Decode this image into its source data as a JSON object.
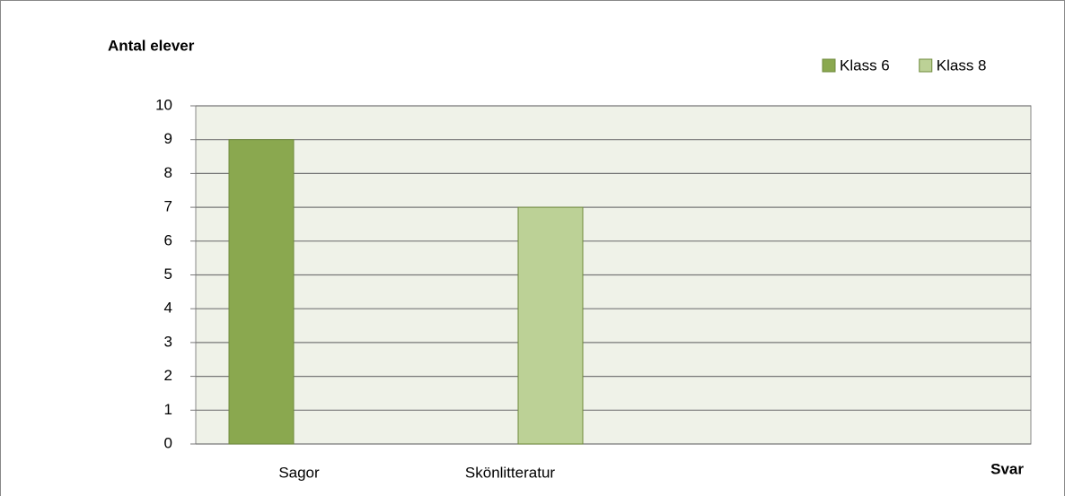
{
  "chart_data": {
    "type": "bar",
    "y_label": "Antal elever",
    "x_label": "Svar",
    "categories": [
      "Sagor",
      "Skönlitteratur"
    ],
    "series": [
      {
        "name": "Klass 6",
        "color": "#8aa84f",
        "values": [
          9,
          null
        ]
      },
      {
        "name": "Klass 8",
        "color": "#bcd196",
        "values": [
          null,
          7
        ]
      }
    ],
    "ylim": [
      0,
      10
    ],
    "yticks": [
      0,
      1,
      2,
      3,
      4,
      5,
      6,
      7,
      8,
      9,
      10
    ],
    "grid": true,
    "legend": "top-right"
  }
}
